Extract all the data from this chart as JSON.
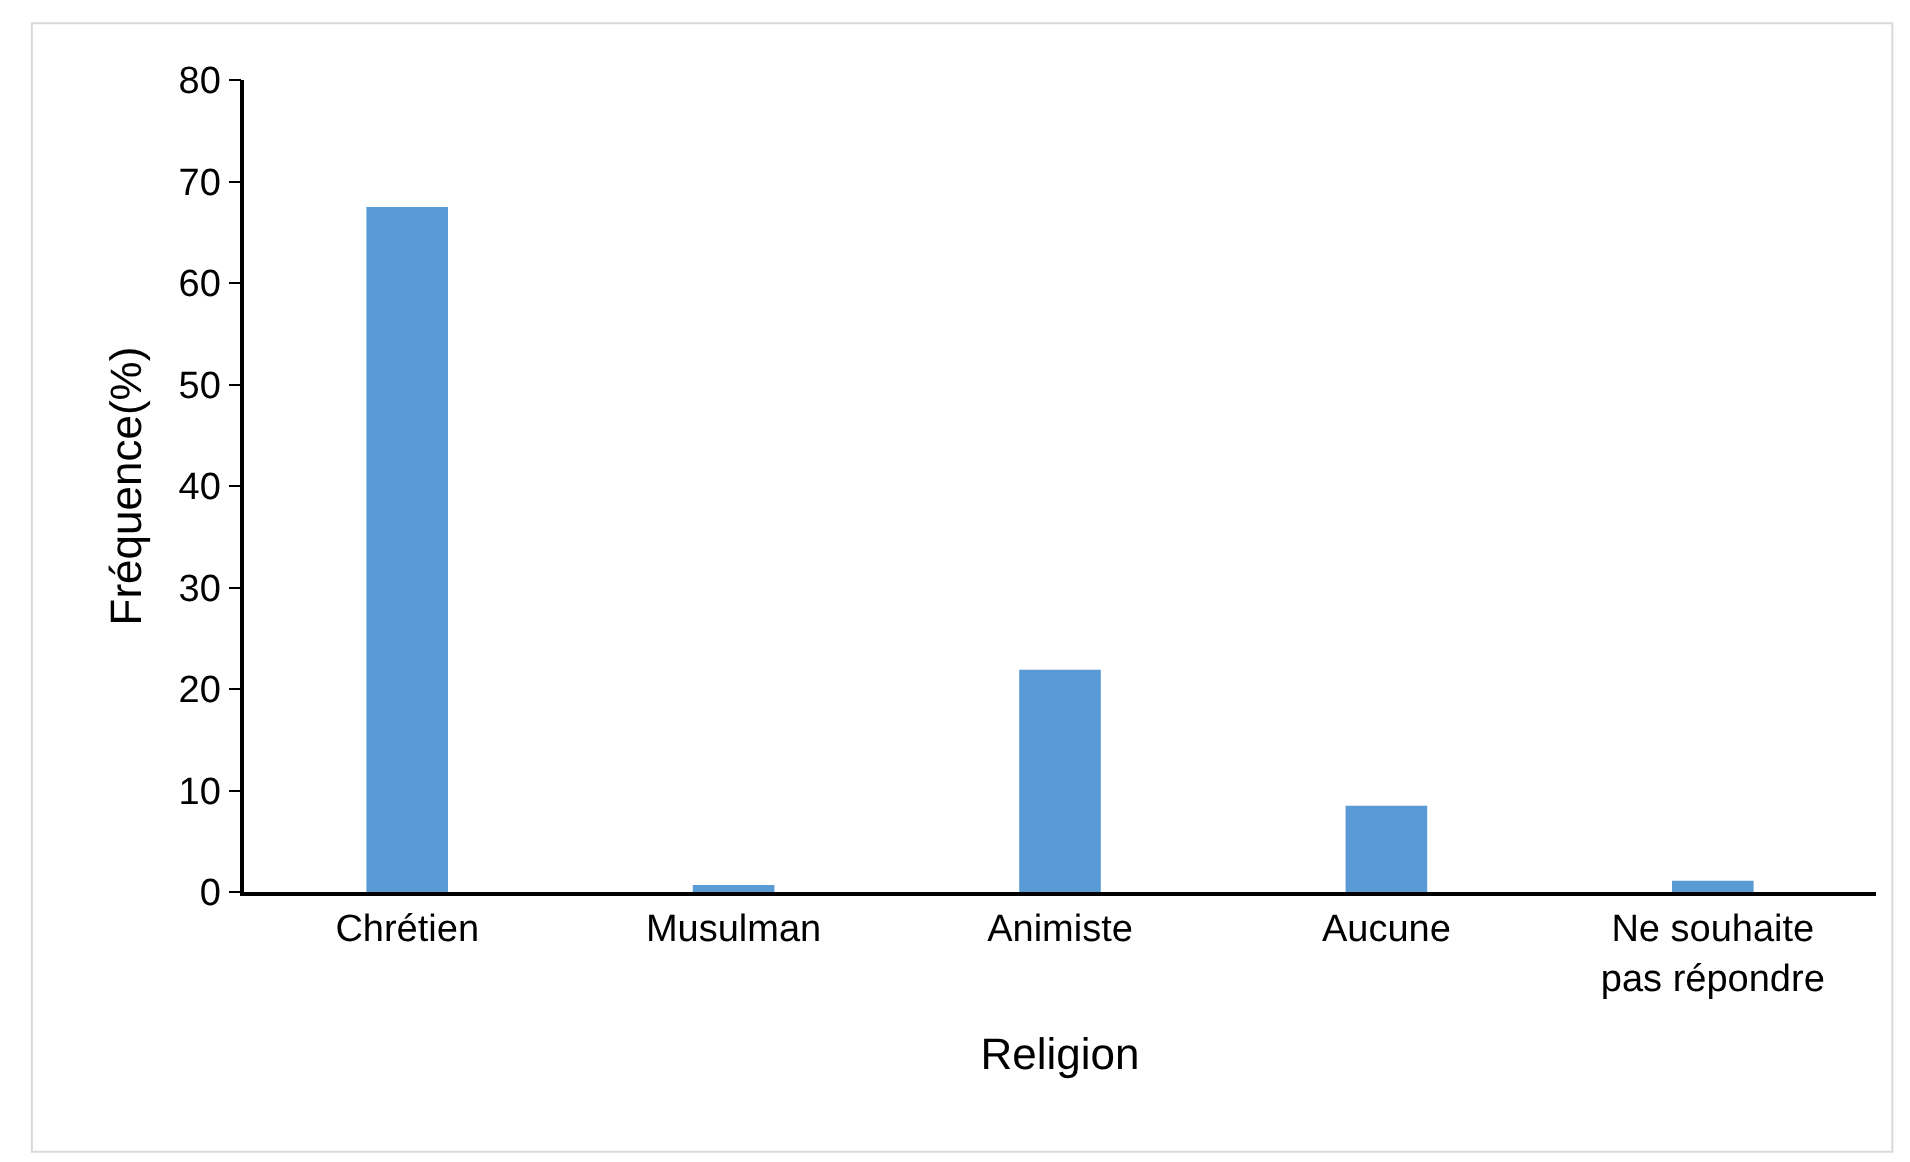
{
  "chart_data": {
    "type": "bar",
    "xlabel": "Religion",
    "ylabel": "Fréquence(%)",
    "categories": [
      "Chrétien",
      "Musulman",
      "Animiste",
      "Aucune",
      "Ne souhaite pas répondre"
    ],
    "values": [
      67.5,
      0.7,
      21.9,
      8.5,
      1.1
    ],
    "color": "#5b9bd5",
    "ylim": [
      0,
      80
    ],
    "yticks": [
      0,
      10,
      20,
      30,
      40,
      50,
      60,
      70,
      80
    ]
  }
}
